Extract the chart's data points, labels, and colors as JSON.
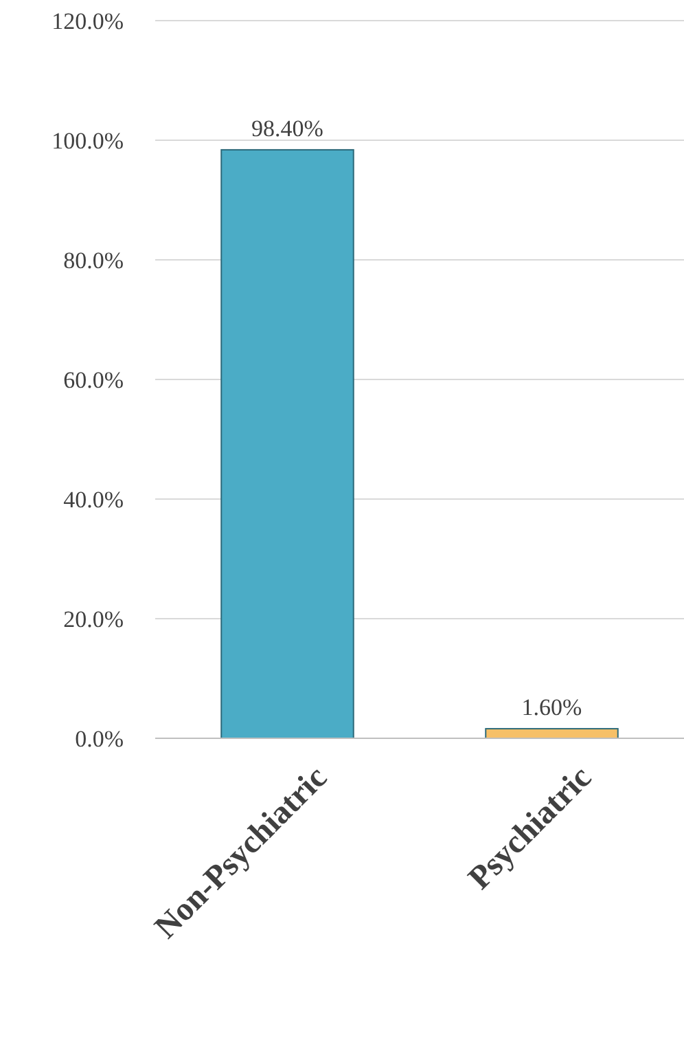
{
  "chart_data": {
    "type": "bar",
    "categories": [
      "Non-Psychiatric",
      "Psychiatric"
    ],
    "values": [
      98.4,
      1.6
    ],
    "colors": [
      "#4bacc6",
      "#f6c068"
    ],
    "value_labels": [
      "98.40%",
      "1.60%"
    ],
    "ylim": [
      0,
      120
    ],
    "yticks": [
      {
        "value": 0,
        "label": "0.0%"
      },
      {
        "value": 20,
        "label": "20.0%"
      },
      {
        "value": 40,
        "label": "40.0%"
      },
      {
        "value": 60,
        "label": "60.0%"
      },
      {
        "value": 80,
        "label": "80.0%"
      },
      {
        "value": 100,
        "label": "100.0%"
      },
      {
        "value": 120,
        "label": "120.0%"
      }
    ],
    "grid": "y"
  }
}
